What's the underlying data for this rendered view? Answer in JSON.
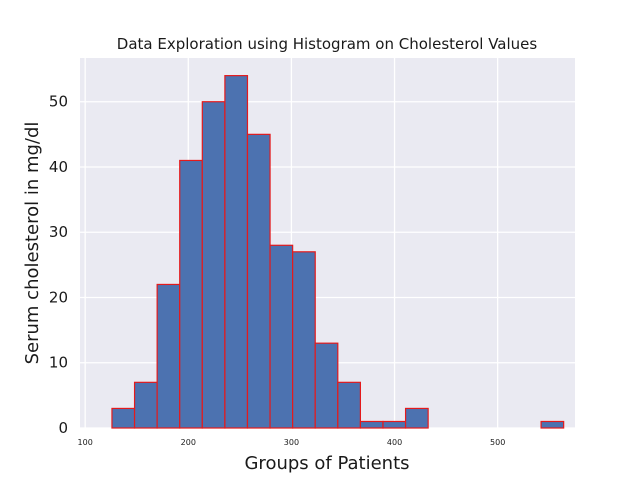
{
  "chart_data": {
    "type": "bar",
    "title": "Data Exploration using Histogram on Cholesterol Values",
    "xlabel": "Groups of Patients",
    "ylabel": "Serum cholesterol in mg/dl",
    "xlim": [
      95,
      575
    ],
    "ylim": [
      0,
      56.7
    ],
    "xticks": [
      100,
      200,
      300,
      400,
      500
    ],
    "yticks": [
      0,
      10,
      20,
      30,
      40,
      50
    ],
    "grid": true,
    "bin_edges": [
      126,
      147.9,
      169.8,
      191.7,
      213.6,
      235.5,
      257.4,
      279.3,
      301.2,
      323.1,
      345,
      366.9,
      388.8,
      410.7,
      432.6,
      454.5,
      476.4,
      498.3,
      520.2,
      542.1,
      564
    ],
    "values": [
      3,
      7,
      22,
      41,
      50,
      54,
      45,
      28,
      27,
      13,
      7,
      1,
      1,
      3,
      0,
      0,
      0,
      0,
      0,
      1
    ],
    "colors": {
      "bar_fill": "#4c72b0",
      "bar_edge": "#e41a1c",
      "background": "#eaeaf2",
      "grid": "#ffffff"
    }
  }
}
